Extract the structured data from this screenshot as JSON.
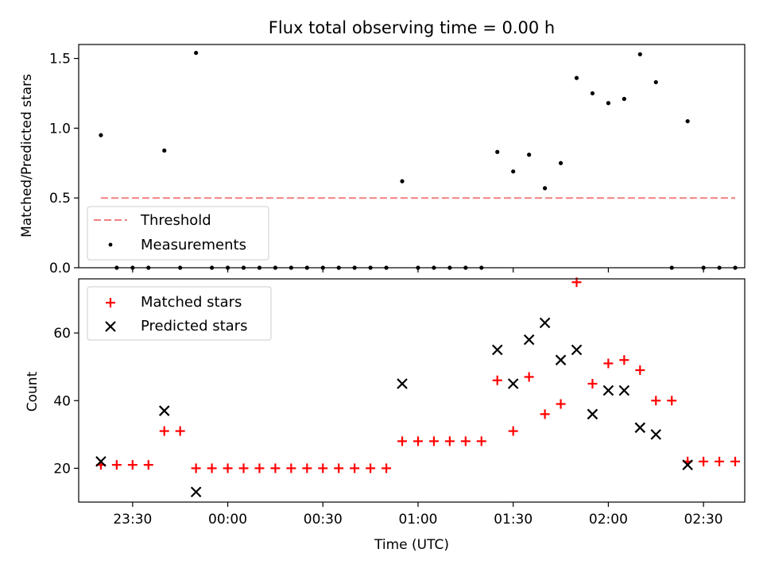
{
  "chart_data": [
    {
      "type": "scatter",
      "title": "Flux total observing time = 0.00 h",
      "xlabel": "",
      "ylabel": "Matched/Predicted stars",
      "ylim": [
        0,
        1.6
      ],
      "yticks": [
        "0.0",
        "0.5",
        "1.0",
        "1.5"
      ],
      "legend_position": "bottom-left",
      "series": [
        {
          "name": "Threshold",
          "style": "dashed-line",
          "color": "#f08080",
          "x": [
            "23:20",
            "02:40"
          ],
          "y": [
            0.5,
            0.5
          ]
        },
        {
          "name": "Measurements",
          "style": "dot",
          "color": "#000000",
          "x": [
            "23:20",
            "23:25",
            "23:30",
            "23:35",
            "23:40",
            "23:45",
            "23:50",
            "23:55",
            "00:00",
            "00:05",
            "00:10",
            "00:15",
            "00:20",
            "00:25",
            "00:30",
            "00:35",
            "00:40",
            "00:45",
            "00:50",
            "00:55",
            "01:00",
            "01:05",
            "01:10",
            "01:15",
            "01:20",
            "01:25",
            "01:30",
            "01:35",
            "01:40",
            "01:45",
            "01:50",
            "01:55",
            "02:00",
            "02:05",
            "02:10",
            "02:15",
            "02:20",
            "02:25",
            "02:30",
            "02:35",
            "02:40"
          ],
          "y": [
            0.95,
            0.0,
            0.0,
            0.0,
            0.84,
            0.0,
            1.54,
            0.0,
            0.0,
            0.0,
            0.0,
            0.0,
            0.0,
            0.0,
            0.0,
            0.0,
            0.0,
            0.0,
            0.0,
            0.62,
            0.0,
            0.0,
            0.0,
            0.0,
            0.0,
            0.83,
            0.69,
            0.81,
            0.57,
            0.75,
            1.36,
            1.25,
            1.18,
            1.21,
            1.53,
            1.33,
            0.0,
            1.05,
            0.0,
            0.0,
            0.0
          ]
        }
      ]
    },
    {
      "type": "scatter",
      "title": "",
      "xlabel": "Time (UTC)",
      "ylabel": "Count",
      "ylim": [
        10,
        76
      ],
      "yticks": [
        "20",
        "40",
        "60"
      ],
      "xticks": [
        "23:30",
        "00:00",
        "00:30",
        "01:00",
        "01:30",
        "02:00",
        "02:30"
      ],
      "xlim": [
        "23:13",
        "02:43"
      ],
      "legend_position": "top-left",
      "series": [
        {
          "name": "Matched stars",
          "style": "plus",
          "color": "#ff0000",
          "x": [
            "23:20",
            "23:25",
            "23:30",
            "23:35",
            "23:40",
            "23:45",
            "23:50",
            "23:55",
            "00:00",
            "00:05",
            "00:10",
            "00:15",
            "00:20",
            "00:25",
            "00:30",
            "00:35",
            "00:40",
            "00:45",
            "00:50",
            "00:55",
            "01:00",
            "01:05",
            "01:10",
            "01:15",
            "01:20",
            "01:25",
            "01:30",
            "01:35",
            "01:40",
            "01:45",
            "01:50",
            "01:55",
            "02:00",
            "02:05",
            "02:10",
            "02:15",
            "02:20",
            "02:25",
            "02:30",
            "02:35",
            "02:40"
          ],
          "y": [
            21,
            21,
            21,
            21,
            31,
            31,
            20,
            20,
            20,
            20,
            20,
            20,
            20,
            20,
            20,
            20,
            20,
            20,
            20,
            28,
            28,
            28,
            28,
            28,
            28,
            46,
            31,
            47,
            36,
            39,
            75,
            45,
            51,
            52,
            49,
            40,
            40,
            22,
            22,
            22,
            22
          ]
        },
        {
          "name": "Predicted stars",
          "style": "x",
          "color": "#000000",
          "x": [
            "23:20",
            "23:40",
            "23:50",
            "00:55",
            "01:25",
            "01:30",
            "01:35",
            "01:40",
            "01:45",
            "01:50",
            "01:55",
            "02:00",
            "02:05",
            "02:10",
            "02:15",
            "02:25"
          ],
          "y": [
            22,
            37,
            13,
            45,
            55,
            45,
            58,
            63,
            52,
            55,
            36,
            43,
            43,
            32,
            30,
            21
          ]
        }
      ]
    }
  ]
}
